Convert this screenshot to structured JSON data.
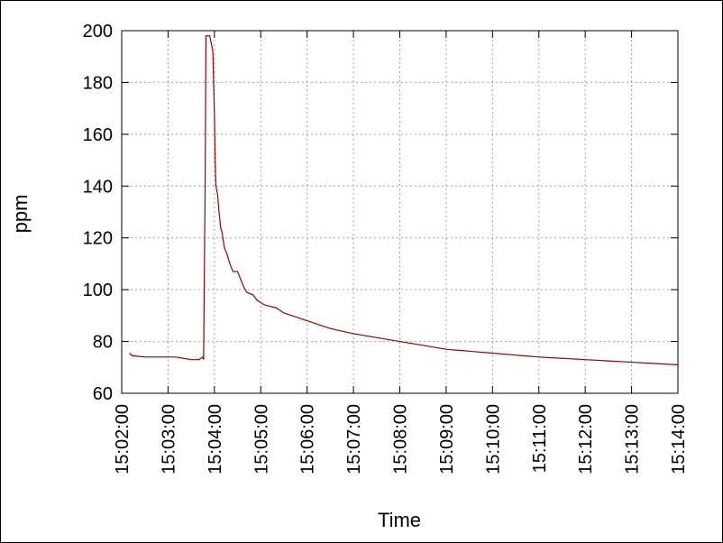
{
  "chart_data": {
    "type": "line",
    "title": "",
    "xlabel": "Time",
    "ylabel": "ppm",
    "ylim": [
      60,
      200
    ],
    "yticks": [
      60,
      80,
      100,
      120,
      140,
      160,
      180,
      200
    ],
    "xlim": [
      "15:02:00",
      "15:14:00"
    ],
    "xticks": [
      "15:02:00",
      "15:03:00",
      "15:04:00",
      "15:05:00",
      "15:06:00",
      "15:07:00",
      "15:08:00",
      "15:09:00",
      "15:10:00",
      "15:11:00",
      "15:12:00",
      "15:13:00",
      "15:14:00"
    ],
    "grid": true,
    "legend": "none",
    "series": [
      {
        "color": "#990000",
        "points": [
          [
            "15:02:10",
            75.5
          ],
          [
            "15:02:14",
            74.5
          ],
          [
            "15:02:30",
            74
          ],
          [
            "15:03:00",
            74
          ],
          [
            "15:03:10",
            74
          ],
          [
            "15:03:20",
            73.5
          ],
          [
            "15:03:30",
            73
          ],
          [
            "15:03:40",
            73
          ],
          [
            "15:03:45",
            74
          ],
          [
            "15:03:46",
            73
          ],
          [
            "15:03:48",
            140
          ],
          [
            "15:03:49",
            198
          ],
          [
            "15:03:54",
            198
          ],
          [
            "15:03:58",
            192
          ],
          [
            "15:04:00",
            168
          ],
          [
            "15:04:01",
            150
          ],
          [
            "15:04:02",
            140
          ],
          [
            "15:04:04",
            137
          ],
          [
            "15:04:06",
            130
          ],
          [
            "15:04:08",
            124
          ],
          [
            "15:04:10",
            122
          ],
          [
            "15:04:13",
            116
          ],
          [
            "15:04:16",
            114
          ],
          [
            "15:04:20",
            110
          ],
          [
            "15:04:24",
            107
          ],
          [
            "15:04:30",
            107
          ],
          [
            "15:04:34",
            104
          ],
          [
            "15:04:38",
            101
          ],
          [
            "15:04:42",
            99
          ],
          [
            "15:04:50",
            98
          ],
          [
            "15:04:55",
            96
          ],
          [
            "15:05:00",
            95
          ],
          [
            "15:05:06",
            94
          ],
          [
            "15:05:20",
            93
          ],
          [
            "15:05:30",
            91
          ],
          [
            "15:05:40",
            90
          ],
          [
            "15:05:50",
            89
          ],
          [
            "15:06:00",
            88
          ],
          [
            "15:06:15",
            86.5
          ],
          [
            "15:06:30",
            85
          ],
          [
            "15:06:45",
            84
          ],
          [
            "15:07:00",
            83
          ],
          [
            "15:07:20",
            82
          ],
          [
            "15:07:40",
            81
          ],
          [
            "15:08:00",
            80
          ],
          [
            "15:08:20",
            79
          ],
          [
            "15:08:40",
            78
          ],
          [
            "15:09:00",
            77
          ],
          [
            "15:09:20",
            76.5
          ],
          [
            "15:09:40",
            76
          ],
          [
            "15:10:00",
            75.5
          ],
          [
            "15:10:20",
            75
          ],
          [
            "15:10:40",
            74.5
          ],
          [
            "15:11:00",
            74
          ],
          [
            "15:11:30",
            73.5
          ],
          [
            "15:12:00",
            73
          ],
          [
            "15:12:30",
            72.5
          ],
          [
            "15:13:00",
            72
          ],
          [
            "15:13:30",
            71.5
          ],
          [
            "15:14:00",
            71
          ]
        ]
      }
    ]
  }
}
